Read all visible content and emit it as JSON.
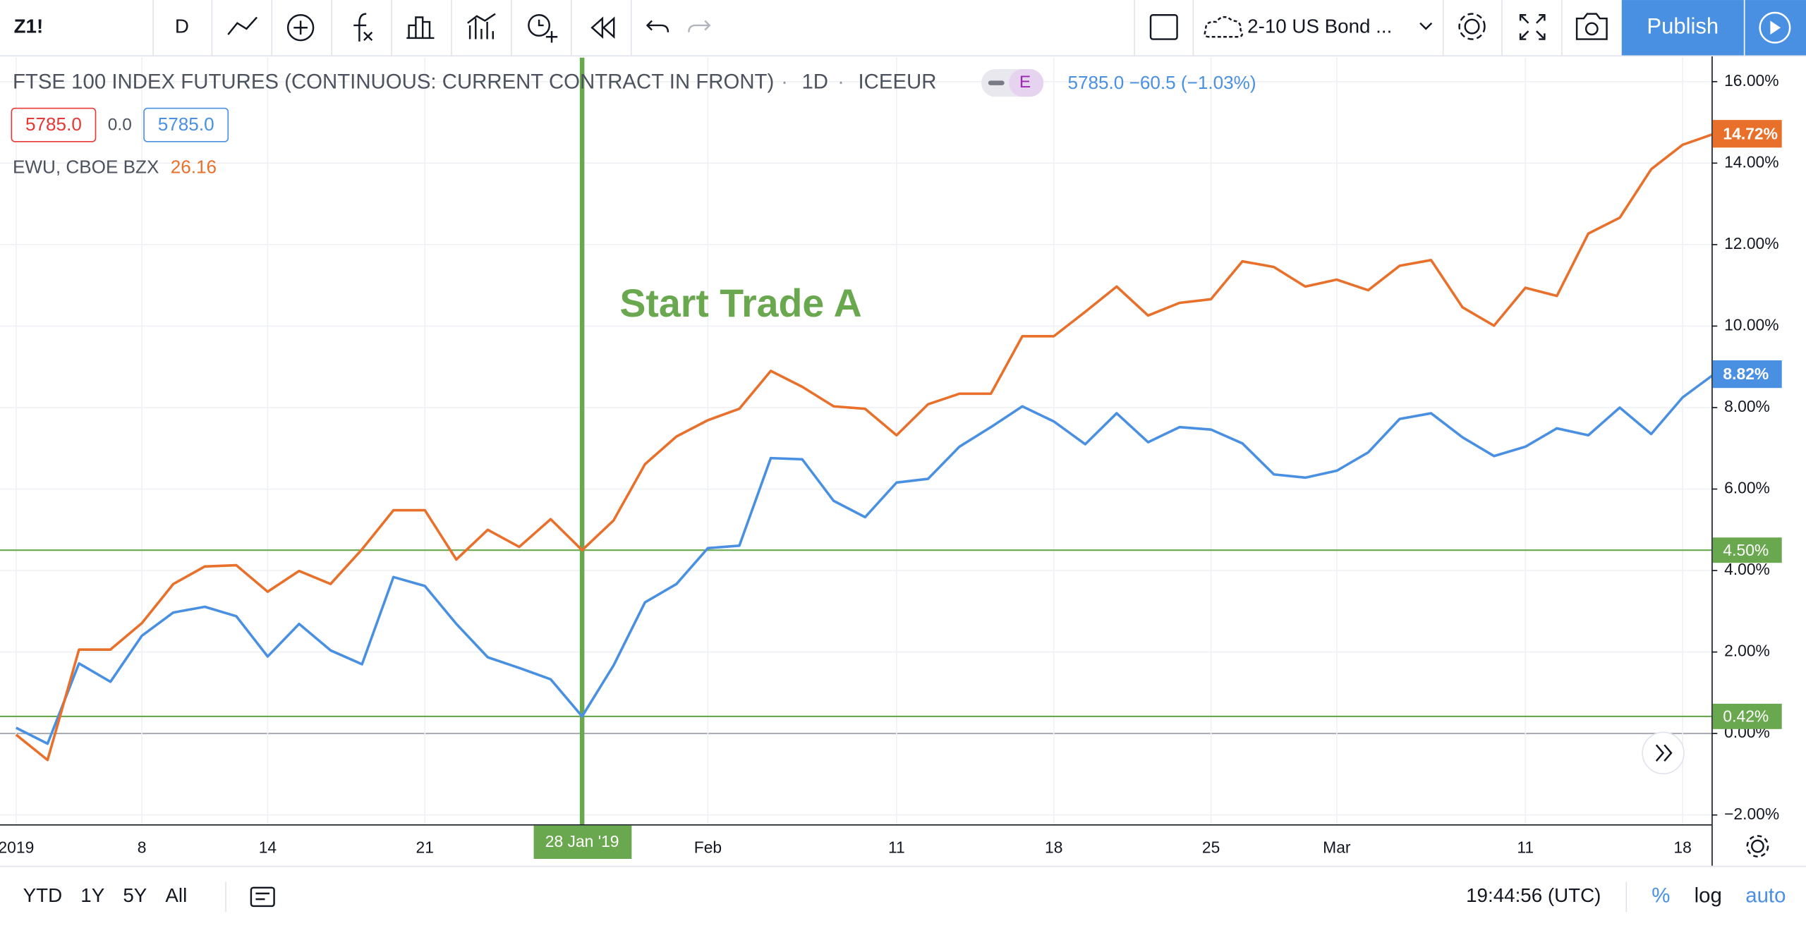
{
  "toolbar": {
    "symbol": "Z1!",
    "interval": "D",
    "compare": "2-10 US Bond ...",
    "publish": "Publish"
  },
  "legend": {
    "series_detail": "1D",
    "exchange": "ICEEUR",
    "badge": "E",
    "quote": "5785.0 −60.5 (−1.03%)",
    "bid": "5785.0",
    "spread": "0.0",
    "ask": "5785.0",
    "compare_value": "26.16"
  },
  "bottom_bar": {
    "ranges": [
      "YTD",
      "1Y",
      "5Y",
      "All"
    ],
    "clock": "19:44:56 (UTC)",
    "percent": "%",
    "log": "log",
    "auto": "auto"
  },
  "chart_data": {
    "type": "line",
    "categories": [
      "2019",
      null,
      null,
      null,
      "8",
      null,
      null,
      null,
      "14",
      null,
      null,
      null,
      null,
      "21",
      null,
      null,
      null,
      null,
      "28 Jan '19",
      null,
      null,
      null,
      "Feb",
      null,
      null,
      null,
      null,
      null,
      "11",
      null,
      null,
      null,
      null,
      "18",
      null,
      null,
      null,
      null,
      "25",
      null,
      null,
      null,
      "Mar",
      null,
      null,
      null,
      null,
      null,
      "11",
      null,
      null,
      null,
      null,
      "18",
      null
    ],
    "series": [
      {
        "name": "FTSE 100 INDEX FUTURES (CONTINUOUS: CURRENT CONTRACT IN FRONT)",
        "color": "#4a90e2",
        "last_value_label": "8.82%",
        "values": [
          0.14,
          -0.25,
          1.72,
          1.27,
          2.4,
          2.97,
          3.11,
          2.88,
          1.89,
          2.69,
          2.04,
          1.7,
          3.84,
          3.62,
          2.69,
          1.87,
          1.61,
          1.33,
          0.42,
          1.67,
          3.22,
          3.67,
          4.55,
          4.61,
          6.76,
          6.73,
          5.71,
          5.31,
          6.16,
          6.25,
          7.04,
          7.52,
          8.03,
          7.66,
          7.1,
          7.86,
          7.15,
          7.52,
          7.46,
          7.12,
          6.36,
          6.28,
          6.45,
          6.9,
          7.72,
          7.86,
          7.27,
          6.81,
          7.04,
          7.49,
          7.32,
          8.0,
          7.35,
          8.25,
          8.82
        ]
      },
      {
        "name": "EWU, CBOE BZX",
        "color": "#e8702a",
        "last_value_label": "14.72%",
        "values": [
          -0.03,
          -0.65,
          2.06,
          2.06,
          2.71,
          3.67,
          4.1,
          4.13,
          3.48,
          3.99,
          3.67,
          4.52,
          5.48,
          5.48,
          4.27,
          5.0,
          4.58,
          5.26,
          4.5,
          5.23,
          6.61,
          7.29,
          7.69,
          7.97,
          8.9,
          8.51,
          8.03,
          7.97,
          7.32,
          8.08,
          8.34,
          8.34,
          9.75,
          9.75,
          10.35,
          10.97,
          10.26,
          10.57,
          10.66,
          11.59,
          11.45,
          10.97,
          11.14,
          10.88,
          11.48,
          11.62,
          10.46,
          10.01,
          10.94,
          10.74,
          12.27,
          12.66,
          13.85,
          14.45,
          14.72
        ]
      }
    ],
    "hlines": [
      {
        "value": 4.5,
        "label": "4.50%",
        "color": "#6aa84f"
      },
      {
        "value": 0.42,
        "label": "0.42%",
        "color": "#6aa84f"
      }
    ],
    "vline": {
      "category_index": 18,
      "color": "#6aa84f"
    },
    "annotation": "Start Trade A",
    "ylim": [
      -2.23,
      16.59
    ],
    "yticks": [
      {
        "value": 16,
        "label": "16.00%"
      },
      {
        "value": 14,
        "label": "14.00%"
      },
      {
        "value": 12,
        "label": "12.00%"
      },
      {
        "value": 10,
        "label": "10.00%"
      },
      {
        "value": 8,
        "label": "8.00%"
      },
      {
        "value": 6,
        "label": "6.00%"
      },
      {
        "value": 4,
        "label": "4.00%"
      },
      {
        "value": 2,
        "label": "2.00%"
      },
      {
        "value": 0,
        "label": "0.00%"
      },
      {
        "value": -2,
        "label": "−2.00%"
      }
    ],
    "grid": true
  }
}
